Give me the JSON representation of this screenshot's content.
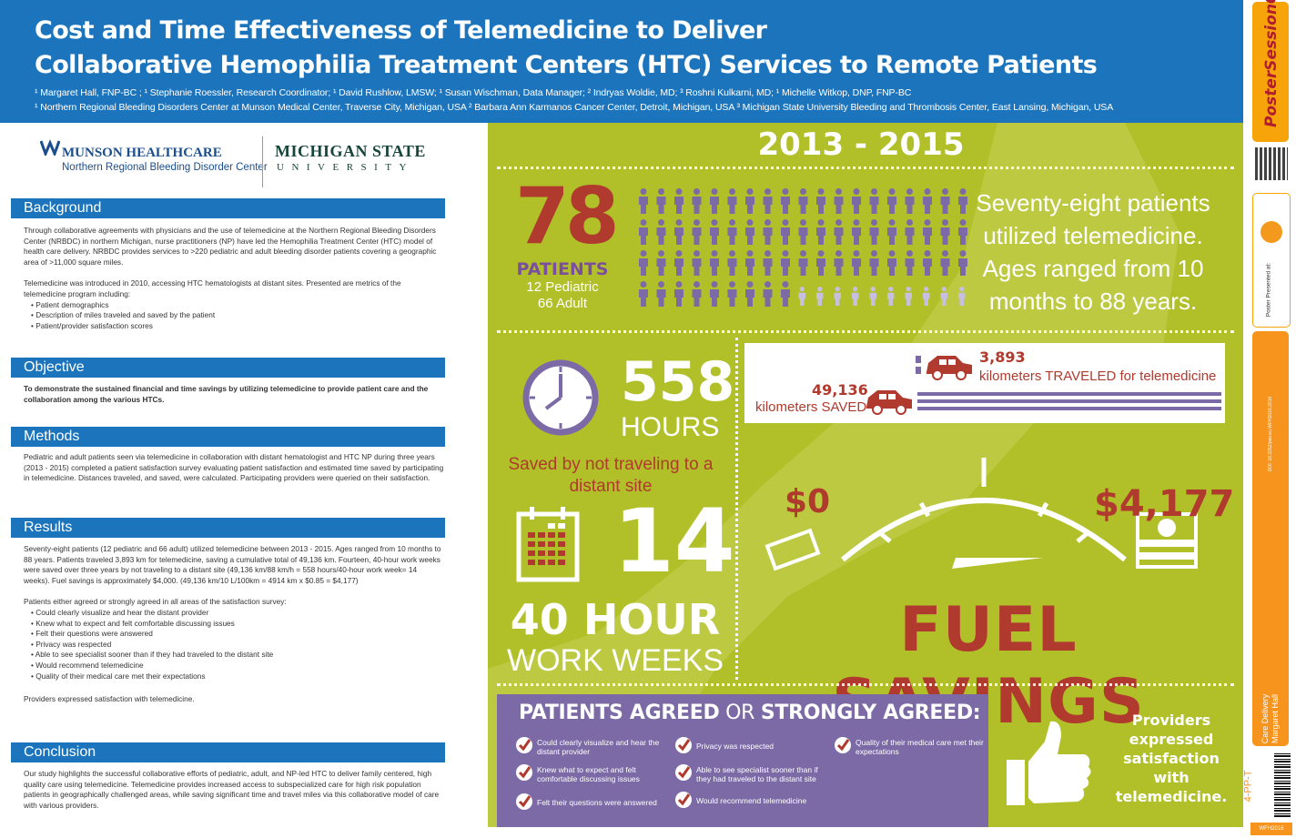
{
  "header": {
    "title_line1": "Cost and Time Effectiveness of Telemedicine to Deliver",
    "title_line2": "Collaborative Hemophilia Treatment Centers (HTC) Services to Remote Patients",
    "authors": "¹ Margaret Hall, FNP-BC ; ¹ Stephanie Roessler, Research Coordinator; ¹ David Rushlow, LMSW; ¹ Susan Wischman, Data Manager; ² Indryas Woldie, MD; ³ Roshni Kulkarni, MD; ¹ Michelle Witkop, DNP, FNP-BC",
    "affiliations": "¹ Northern Regional Bleeding Disorders Center at Munson Medical Center, Traverse City, Michigan, USA ² Barbara Ann Karmanos Cancer Center, Detroit, Michigan, USA ³ Michigan State University Bleeding and Thrombosis Center, East Lansing, Michigan, USA"
  },
  "logos": {
    "munson_name": "MUNSON HEALTHCARE",
    "munson_sub": "Northern Regional Bleeding Disorder Center",
    "msu_name": "MICHIGAN STATE",
    "msu_sub": "UNIVERSITY"
  },
  "sections": {
    "background": {
      "title": "Background",
      "p1": "Through collaborative agreements with physicians and the use of telemedicine at the Northern Regional Bleeding Disorders Center (NRBDC) in northern Michigan, nurse practitioners (NP) have led the Hemophilia Treatment Center (HTC) model of health care delivery. NRBDC provides services to >220 pediatric and adult bleeding disorder patients covering a geographic area of >11,000 square miles.",
      "p2": "Telemedicine was introduced in 2010, accessing HTC hematologists at distant sites. Presented are metrics of the telemedicine program including:",
      "bullets": [
        "Patient demographics",
        "Description of miles traveled and saved by the patient",
        "Patient/provider satisfaction scores"
      ]
    },
    "objective": {
      "title": "Objective",
      "text": "To demonstrate the sustained financial and time savings by utilizing telemedicine to provide patient care and the collaboration among the various HTCs."
    },
    "methods": {
      "title": "Methods",
      "text": "Pediatric and adult patients seen via telemedicine in collaboration with distant hematologist and HTC NP during three years (2013 - 2015) completed a patient satisfaction survey evaluating patient satisfaction and estimated time saved by participating in telemedicine. Distances traveled, and saved, were calculated. Participating providers were queried on their satisfaction."
    },
    "results": {
      "title": "Results",
      "p1": "Seventy-eight patients (12 pediatric and 66 adult) utilized telemedicine between 2013 - 2015. Ages ranged from 10 months to 88 years. Patients traveled 3,893 km for telemedicine, saving a cumulative total of 49,136 km. Fourteen, 40-hour work weeks were saved over three years by not traveling to a distant site (49,136 km/88 km/h = 558 hours/40-hour work week= 14 weeks). Fuel savings is approximately $4,000. (49,136 km/10 L/100km = 4914 km x $0.85 = $4,177)",
      "p2": "Patients either agreed or strongly agreed in all areas of the satisfaction survey:",
      "bullets": [
        "Could clearly visualize and hear the distant provider",
        "Knew what to expect and felt comfortable discussing issues",
        "Felt their questions were answered",
        "Privacy was respected",
        "Able to see specialist sooner than if they had traveled to the distant site",
        "Would recommend telemedicine",
        "Quality of their medical care met their expectations"
      ],
      "p3": "Providers expressed satisfaction with telemedicine."
    },
    "conclusion": {
      "title": "Conclusion",
      "text": "Our study highlights the successful collaborative efforts of pediatric, adult, and NP-led HTC to deliver family centered, high quality care using telemedicine. Telemedicine provides increased access to subspecialized care for high risk population patients in geographically challenged areas, while saving significant time and travel miles via this collaborative model of care with various providers."
    }
  },
  "infographic": {
    "years": "2013 - 2015",
    "patients_number": "78",
    "patients_label": "PATIENTS",
    "pediatric": "12 Pediatric",
    "adult": "66 Adult",
    "pediatric_count": 12,
    "adult_count": 66,
    "summary": "Seventy-eight patients utilized telemedicine. Ages ranged from 10 months to 88 years.",
    "hours_number": "558",
    "hours_label": "HOURS",
    "hours_saved_text": "Saved by not traveling to a distant site",
    "weeks_number": "14",
    "weeks_label1": "40 HOUR",
    "weeks_label2": "WORK WEEKS",
    "km_traveled": "3,893",
    "km_traveled_label": "kilometers TRAVELED for telemedicine",
    "km_saved": "49,136",
    "km_saved_label": "kilometers SAVED",
    "gauge_min": "$0",
    "gauge_max": "$4,177",
    "fuel_savings": "FUEL SAVINGS",
    "agree_title_bold1": "PATIENTS AGREED",
    "agree_title_or": " OR ",
    "agree_title_bold2": "STRONGLY AGREED:",
    "agree_items": [
      "Could clearly visualize and hear the distant provider",
      "Knew what to expect and felt comfortable discussing issues",
      "Felt their questions were answered",
      "Privacy was respected",
      "Able to see specialist sooner than if they had traveled to the distant site",
      "Would recommend telemedicine",
      "Quality of their medical care met their expectations"
    ],
    "providers_text": "Providers expressed satisfaction with telemedicine."
  },
  "sidebar": {
    "brand": "PosterSessionOnline.com",
    "presented_at": "Poster Presented at:",
    "doi": "DOI: 10.3252/pso.eu.WFH2016.2016",
    "category": "Care Delivery",
    "author": "Margaret Hall",
    "poster_id": "4-PP-T",
    "footer": "WFH2016"
  },
  "colors": {
    "header_blue": "#1c75bc",
    "infographic_green": "#b1c029",
    "accent_red": "#b03a2e",
    "accent_purple": "#7b6aa5",
    "sidebar_orange": "#f7941d"
  }
}
